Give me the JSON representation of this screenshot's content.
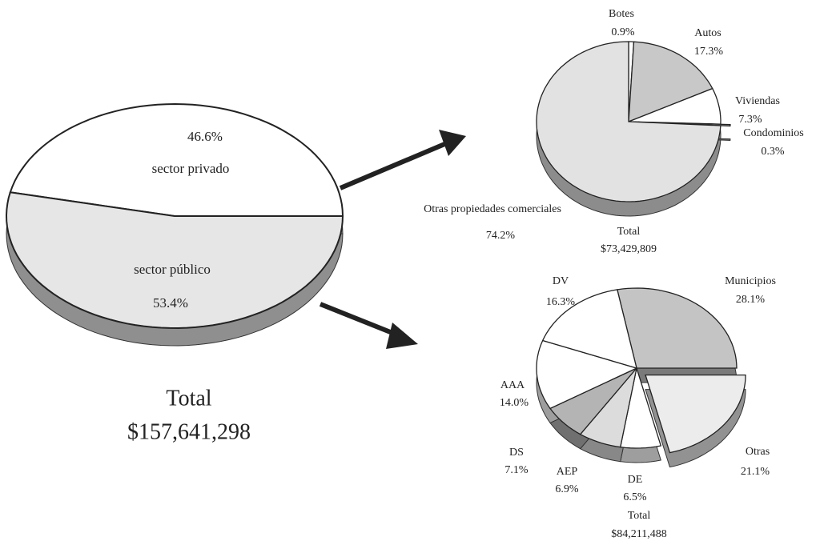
{
  "chart_data": [
    {
      "type": "pie",
      "categories": [
        "sector privado",
        "sector público"
      ],
      "values": [
        46.6,
        53.4
      ],
      "value_labels": [
        "46.6%",
        "53.4%"
      ],
      "colors": [
        "#ffffff",
        "#e6e6e6"
      ],
      "annotations": [
        "Total",
        "$157,641,298"
      ]
    },
    {
      "type": "pie",
      "categories": [
        "Botes",
        "Autos",
        "Viviendas",
        "Condominios",
        "Otras propiedades comerciales"
      ],
      "values": [
        0.9,
        17.3,
        7.3,
        0.3,
        74.2
      ],
      "value_labels": [
        "0.9%",
        "17.3%",
        "7.3%",
        "0.3%",
        "74.2%"
      ],
      "colors": [
        "#ffffff",
        "#c8c8c8",
        "#ffffff",
        "#a0a0a0",
        "#e2e2e2"
      ],
      "annotations": [
        "Total",
        "$73,429,809"
      ]
    },
    {
      "type": "pie",
      "categories": [
        "Municipios",
        "Otras",
        "DE",
        "AEP",
        "DS",
        "AAA",
        "DV"
      ],
      "values": [
        28.1,
        21.1,
        6.5,
        6.9,
        7.1,
        14,
        16.3
      ],
      "value_labels": [
        "28.1%",
        "21.1%",
        "6.5%",
        "6.9%",
        "7.1%",
        "14.0%",
        "16.3%"
      ],
      "colors": [
        "#c4c4c4",
        "#ececec",
        "#ffffff",
        "#dcdcdc",
        "#b4b4b4",
        "#ffffff",
        "#ffffff"
      ],
      "annotations": [
        "Total",
        "$84,211,488"
      ]
    }
  ]
}
